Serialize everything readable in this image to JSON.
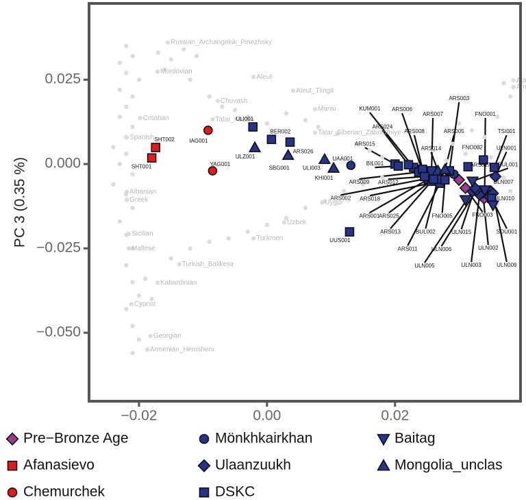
{
  "chart_data": {
    "type": "scatter",
    "ylabel": "PC 3 (0.35 %)",
    "xlim": [
      -0.0278,
      0.0396
    ],
    "ylim": [
      -0.0703,
      0.0476
    ],
    "xticks": [
      {
        "value": -0.02,
        "label": "−0.02"
      },
      {
        "value": 0,
        "label": "0.00"
      },
      {
        "value": 0.02,
        "label": "0.02"
      }
    ],
    "yticks": [
      0.025,
      {
        "value": 0,
        "label": "0.000"
      },
      {
        "value": -0.025,
        "label": "−0.025"
      },
      {
        "value": -0.05,
        "label": "−0.050"
      }
    ],
    "series": [
      {
        "color": "#dcdcdc",
        "marker": "dot",
        "x": [
          -0.022,
          -0.021,
          -0.023,
          -0.022,
          -0.02,
          -0.023,
          -0.021,
          -0.022,
          -0.023,
          -0.021,
          -0.022,
          -0.024,
          -0.022,
          -0.023,
          -0.021,
          -0.024,
          -0.022,
          -0.021,
          -0.023,
          -0.022,
          -0.021,
          -0.022,
          -0.021,
          -0.02,
          -0.022,
          -0.021,
          -0.02,
          -0.021,
          -0.019,
          -0.018,
          -0.017,
          -0.015,
          -0.013,
          -0.011,
          -0.016,
          -0.012,
          -0.009,
          -0.007,
          -0.005,
          -0.003,
          0,
          0.003,
          0.006,
          0.008,
          0.011,
          0.014,
          0.016,
          0.018,
          -0.015,
          -0.012,
          -0.009,
          -0.006,
          -0.003,
          0,
          0.003,
          0.006,
          0.009,
          0.012,
          0.015,
          0.018,
          0.03,
          0.032,
          0.034,
          0.036,
          0.038,
          0.037,
          0.033,
          0.035,
          0.031,
          0.029,
          0.037,
          0.038,
          0.036,
          0.034,
          0.028,
          0.026
        ],
        "y": [
          0.035,
          0.032,
          0.03,
          0.027,
          0.025,
          0.022,
          0.02,
          0.017,
          0.014,
          0.011,
          0.008,
          0.005,
          0.003,
          0,
          -0.003,
          -0.006,
          -0.009,
          -0.013,
          -0.017,
          -0.021,
          -0.025,
          -0.03,
          -0.035,
          -0.039,
          -0.043,
          -0.048,
          -0.052,
          -0.056,
          -0.034,
          -0.04,
          0.033,
          0.031,
          0.034,
          0.032,
          0.028,
          0.025,
          0.02,
          0.017,
          0.016,
          0.014,
          0.012,
          0.015,
          0.013,
          0.011,
          0.009,
          0.006,
          0.004,
          0.002,
          -0.028,
          -0.025,
          -0.023,
          -0.022,
          -0.02,
          -0.018,
          -0.016,
          -0.013,
          -0.011,
          -0.008,
          -0.006,
          -0.004,
          0.012,
          0.01,
          0.008,
          0.014,
          0.02,
          0.024,
          0.005,
          0.002,
          0.003,
          0.006,
          -0.004,
          -0.008,
          -0.012,
          -0.015,
          0.001,
          0.004
        ]
      },
      {
        "color": "#dcdcdc",
        "marker": "dot",
        "label_color": "#b8b8b8",
        "labels": [
          "Russian_Archangelsk_Pinezhsky",
          "Mordovian",
          "Aleut",
          "Aleut_Tlingit",
          "Mansi",
          "Chuvash",
          "Tatar_Kazan",
          "Tatar_Siberian_Zabolotniye",
          "Croatian",
          "Spanish",
          "Albanian",
          "Greek",
          "Uygur",
          "Uzbek",
          "Turkmen",
          "Sicilian",
          "Maltese",
          "Turkish_Balikesir",
          "Kabardinian",
          "Cypriot",
          "Georgian",
          "Armenian_Hemsheni",
          "Atayal",
          "Ami"
        ],
        "x": [
          -0.0155,
          -0.0171,
          -0.0021,
          0.0041,
          0.0075,
          -0.0077,
          -0.0085,
          0.0075,
          -0.0198,
          -0.0219,
          -0.0219,
          -0.0219,
          0.0086,
          0.0027,
          -0.0021,
          -0.0216,
          -0.0216,
          -0.0137,
          -0.0171,
          -0.0212,
          -0.0182,
          -0.0187,
          0.0385,
          0.0385
        ],
        "y": [
          0.036,
          0.0274,
          0.0258,
          0.0217,
          0.0163,
          0.0187,
          0.0132,
          0.0093,
          0.0136,
          0.0079,
          -0.0083,
          -0.0106,
          -0.0114,
          -0.0173,
          -0.022,
          -0.0207,
          -0.025,
          -0.0297,
          -0.0352,
          -0.0415,
          -0.051,
          -0.055,
          0.0248,
          0.0228
        ]
      },
      {
        "name": "Pre−Bronze Age",
        "color": "#9b3d8f",
        "marker": "diamond",
        "labels": [
          "FNO003",
          null,
          null
        ],
        "x": [
          0.031,
          0.03,
          0.0339
        ],
        "y": [
          -0.0071,
          -0.0047,
          -0.0102
        ]
      },
      {
        "name": "Afanasievo",
        "color": "#e31a1c",
        "marker": "square",
        "labels": [
          "SHT002",
          "SHT001"
        ],
        "x": [
          -0.0174,
          -0.018
        ],
        "y": [
          0.0049,
          0.0018
        ]
      },
      {
        "name": "Chemurchek",
        "color": "#e31a1c",
        "marker": "circle",
        "labels": [
          "IAG001",
          "YAG001",
          "ARS018"
        ],
        "x": [
          -0.0092,
          -0.0085,
          0.0271
        ],
        "y": [
          0.01,
          -0.002,
          -0.0051
        ]
      },
      {
        "name": "Mönkhkairkhan",
        "color": "#26348b",
        "marker": "circle",
        "labels": [
          "UAA001",
          null
        ],
        "x": [
          0.0131,
          0.0292
        ],
        "y": [
          -0.0004,
          -0.003
        ]
      },
      {
        "name": "Ulaanzuukh",
        "color": "#26348b",
        "marker": "diamond",
        "labels": [
          "ULN007",
          "ULN010",
          "ULN002",
          "ULN003",
          "ULN009",
          "ULN005",
          "ULN006",
          "ULN015",
          "ULN001"
        ],
        "x": [
          0.035,
          0.0344,
          0.0337,
          0.0332,
          0.0353,
          0.0321,
          0.0327,
          0.0325,
          0.0357
        ],
        "y": [
          -0.0081,
          -0.0091,
          -0.0085,
          -0.0091,
          -0.0087,
          -0.0081,
          -0.0077,
          -0.0071,
          -0.0037
        ]
      },
      {
        "name": "DSKC",
        "color": "#26348b",
        "marker": "square",
        "labels": [
          "ULI001",
          "BER002",
          "ARS026",
          "UUS001",
          "KUM001",
          "ARS006",
          "ARS024",
          "ARS015",
          "BIL001",
          "ARS009",
          "ARS002",
          "ARS001",
          "ARS013",
          "ARS011",
          "FNO002",
          "ARS017",
          "TSI001",
          "SOU001",
          "ARS007",
          "ARS003",
          "ARS008",
          "BUL002",
          "ARS025",
          "ARS012",
          "FNO005"
        ],
        "x": [
          -0.0022,
          0.0007,
          0.0036,
          0.0129,
          0.0229,
          0.0242,
          0.0221,
          0.02,
          0.0205,
          0.0237,
          0.0267,
          0.0252,
          0.0257,
          0.027,
          0.0338,
          0.0314,
          0.0355,
          0.0351,
          0.0257,
          0.0285,
          0.0243,
          0.0267,
          0.026,
          0.0246,
          0.0278
        ],
        "y": [
          0.011,
          0.0073,
          0.0065,
          -0.0201,
          -0.001,
          -0.0016,
          -0.0002,
          0,
          -0.0006,
          -0.0024,
          -0.0037,
          -0.0045,
          -0.0051,
          -0.0057,
          0.0012,
          -0.0008,
          -0.001,
          -0.0102,
          -0.002,
          -0.002,
          -0.0016,
          -0.0045,
          -0.0045,
          -0.0037,
          -0.0047
        ]
      },
      {
        "name": "Baitag",
        "color": "#26348b",
        "marker": "triangle-down",
        "labels": [
          "FNO001",
          "BUL001",
          null,
          null
        ],
        "x": [
          0.034,
          0.0321,
          0.031,
          0.0353
        ],
        "y": [
          -0.0077,
          -0.0051,
          -0.0106,
          -0.0122
        ]
      },
      {
        "name": "Mongolia_unclas",
        "color": "#26348b",
        "marker": "triangle-up",
        "labels": [
          "ULZ001",
          "SBG001",
          "ULI003",
          "KHI001",
          "ARS014",
          "ARS005"
        ],
        "x": [
          -0.0019,
          0.0033,
          0.009,
          0.0104,
          0.0267,
          0.0278
        ],
        "y": [
          0.0049,
          0.0026,
          0.0014,
          -0.0012,
          -0.002,
          -0.0016
        ]
      }
    ]
  }
}
